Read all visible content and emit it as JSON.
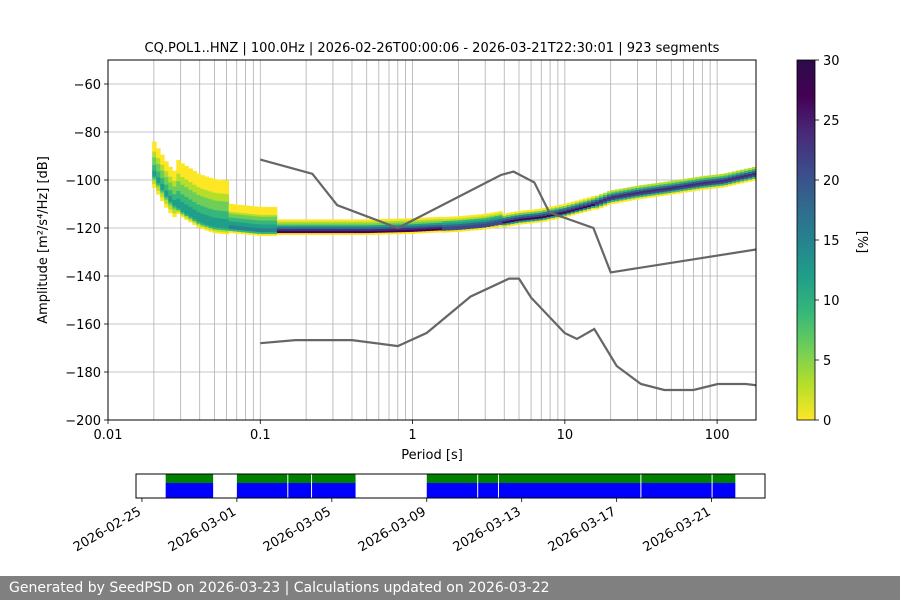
{
  "footer": {
    "text": "Generated by SeedPSD on 2026-03-23 | Calculations updated on 2026-03-22"
  },
  "chart_data": [
    {
      "type": "heatmap",
      "title": "CQ.POL1..HNZ | 100.0Hz | 2026-02-26T00:00:06 - 2026-03-21T22:30:01 | 923 segments",
      "xlabel": "Period [s]",
      "ylabel": "Amplitude [m²/s⁴/Hz] [dB]",
      "x_scale": "log",
      "xlim": [
        0.01,
        180
      ],
      "ylim": [
        -200,
        -50
      ],
      "x_ticks": [
        0.01,
        0.1,
        1,
        10,
        100
      ],
      "x_tick_labels": [
        "0.01",
        "0.1",
        "1",
        "10",
        "100"
      ],
      "y_ticks": [
        -200,
        -180,
        -160,
        -140,
        -120,
        -100,
        -80,
        -60
      ],
      "y_tick_labels": [
        "−200",
        "−180",
        "−160",
        "−140",
        "−120",
        "−100",
        "−80",
        "−60"
      ],
      "grid": true,
      "colorbar": {
        "label": "[%]",
        "range": [
          0,
          30
        ],
        "ticks": [
          0,
          5,
          10,
          15,
          20,
          25,
          30
        ],
        "colormap": "viridis_r"
      },
      "psd_mode": [
        [
          0.02,
          -98
        ],
        [
          0.025,
          -108
        ],
        [
          0.03,
          -113
        ],
        [
          0.04,
          -118
        ],
        [
          0.05,
          -120
        ],
        [
          0.07,
          -121
        ],
        [
          0.1,
          -122
        ],
        [
          0.2,
          -122
        ],
        [
          0.5,
          -122
        ],
        [
          1,
          -121.5
        ],
        [
          2,
          -120.5
        ],
        [
          3,
          -119.5
        ],
        [
          5,
          -117
        ],
        [
          7,
          -116
        ],
        [
          10,
          -114
        ],
        [
          15,
          -111
        ],
        [
          20,
          -108
        ],
        [
          30,
          -106
        ],
        [
          50,
          -104
        ],
        [
          80,
          -102
        ],
        [
          110,
          -101
        ],
        [
          140,
          -99.5
        ],
        [
          180,
          -98
        ]
      ],
      "high_noise_model": {
        "name": "NHNM",
        "color": "#666666",
        "points": [
          [
            0.1,
            -91.5
          ],
          [
            0.22,
            -97.4
          ],
          [
            0.32,
            -110.5
          ],
          [
            0.8,
            -120
          ],
          [
            3.8,
            -97.9
          ],
          [
            4.6,
            -96.5
          ],
          [
            6.3,
            -101
          ],
          [
            7.9,
            -113.5
          ],
          [
            15.4,
            -120
          ],
          [
            20,
            -138.5
          ],
          [
            354.8,
            -126
          ]
        ]
      },
      "low_noise_model": {
        "name": "NLNM",
        "color": "#666666",
        "points": [
          [
            0.1,
            -168
          ],
          [
            0.17,
            -166.7
          ],
          [
            0.4,
            -166.7
          ],
          [
            0.8,
            -169.2
          ],
          [
            1.24,
            -163.7
          ],
          [
            2.4,
            -148.6
          ],
          [
            4.3,
            -141.1
          ],
          [
            5,
            -141.1
          ],
          [
            6,
            -149
          ],
          [
            10,
            -163.8
          ],
          [
            12,
            -166.2
          ],
          [
            15.6,
            -162.1
          ],
          [
            21.9,
            -177.5
          ],
          [
            31.6,
            -185
          ],
          [
            45,
            -187.5
          ],
          [
            70,
            -187.5
          ],
          [
            101,
            -185
          ],
          [
            154,
            -185
          ],
          [
            328,
            -187.5
          ]
        ]
      }
    },
    {
      "type": "timeline",
      "x_tick_labels": [
        "2026-02-25",
        "2026-03-01",
        "2026-03-05",
        "2026-03-09",
        "2026-03-13",
        "2026-03-17",
        "2026-03-21"
      ],
      "x_ticks": [
        "2026-02-25",
        "2026-03-01",
        "2026-03-05",
        "2026-03-09",
        "2026-03-13",
        "2026-03-17",
        "2026-03-21"
      ],
      "xlim": [
        "2026-02-24T18:00",
        "2026-03-23T06:00"
      ],
      "top_color": "#008000",
      "bottom_color": "#0000ff",
      "coverage": [
        [
          "2026-02-26T00:00",
          "2026-02-28T00:00"
        ],
        [
          "2026-03-01T00:00",
          "2026-03-03T03:00"
        ],
        [
          "2026-03-03T04:00",
          "2026-03-04T03:00"
        ],
        [
          "2026-03-04T04:00",
          "2026-03-06T00:00"
        ],
        [
          "2026-03-09T00:00",
          "2026-03-11T03:00"
        ],
        [
          "2026-03-11T04:00",
          "2026-03-12T00:00"
        ],
        [
          "2026-03-12T01:00",
          "2026-03-18T00:00"
        ],
        [
          "2026-03-18T01:00",
          "2026-03-21T00:00"
        ],
        [
          "2026-03-21T01:00",
          "2026-03-22T00:00"
        ]
      ]
    }
  ]
}
